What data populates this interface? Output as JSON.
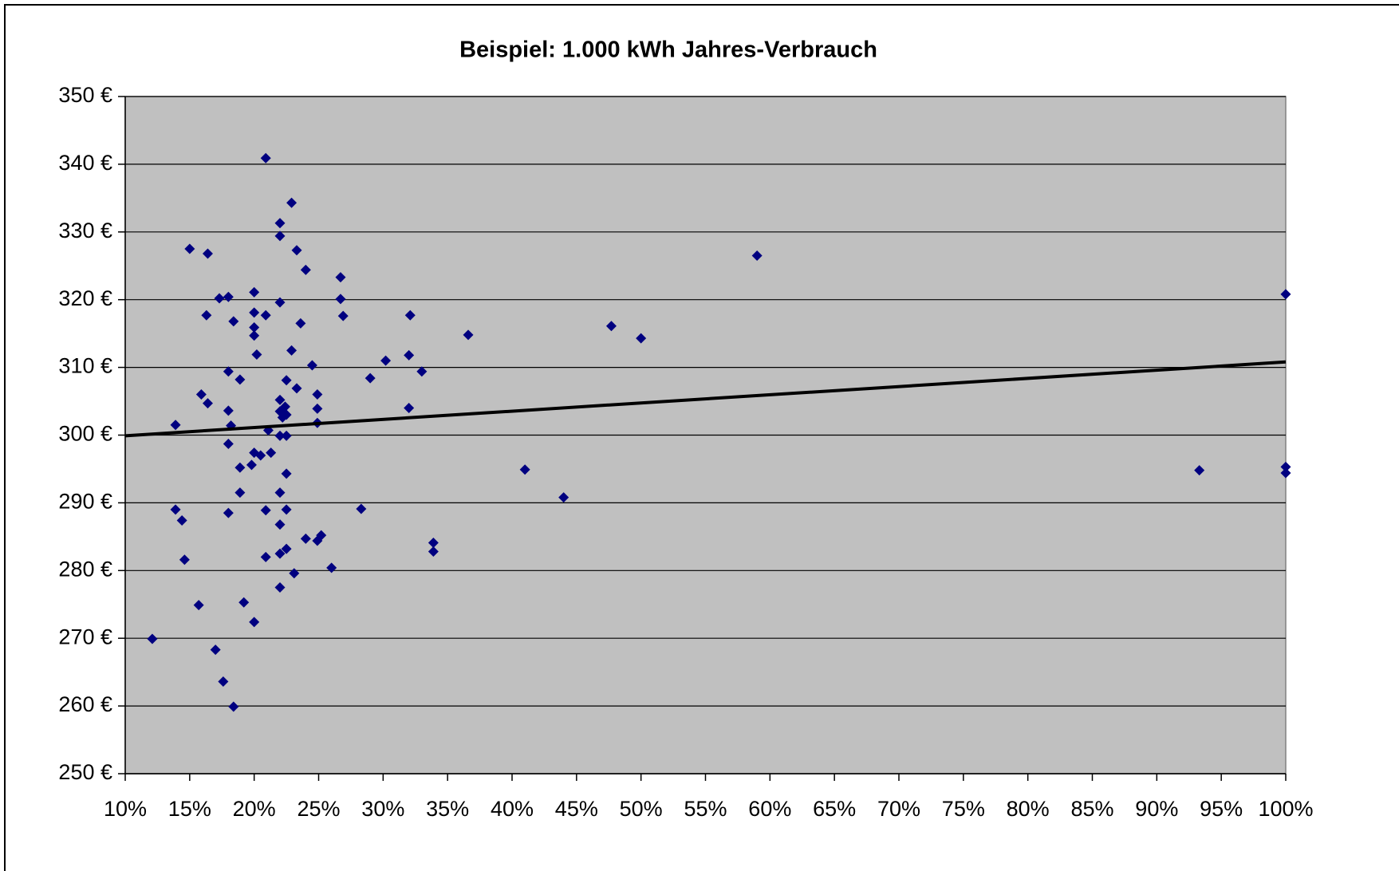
{
  "chart_data": {
    "type": "scatter",
    "title": "Beispiel: 1.000 kWh Jahres-Verbrauch",
    "xlim": [
      10,
      100
    ],
    "ylim": [
      250,
      350
    ],
    "xticks": [
      {
        "value": 10,
        "label": "10%"
      },
      {
        "value": 15,
        "label": "15%"
      },
      {
        "value": 20,
        "label": "20%"
      },
      {
        "value": 25,
        "label": "25%"
      },
      {
        "value": 30,
        "label": "30%"
      },
      {
        "value": 35,
        "label": "35%"
      },
      {
        "value": 40,
        "label": "40%"
      },
      {
        "value": 45,
        "label": "45%"
      },
      {
        "value": 50,
        "label": "50%"
      },
      {
        "value": 55,
        "label": "55%"
      },
      {
        "value": 60,
        "label": "60%"
      },
      {
        "value": 65,
        "label": "65%"
      },
      {
        "value": 70,
        "label": "70%"
      },
      {
        "value": 75,
        "label": "75%"
      },
      {
        "value": 80,
        "label": "80%"
      },
      {
        "value": 85,
        "label": "85%"
      },
      {
        "value": 90,
        "label": "90%"
      },
      {
        "value": 95,
        "label": "95%"
      },
      {
        "value": 100,
        "label": "100%"
      }
    ],
    "yticks": [
      {
        "value": 250,
        "label": "250 €"
      },
      {
        "value": 260,
        "label": "260 €"
      },
      {
        "value": 270,
        "label": "270 €"
      },
      {
        "value": 280,
        "label": "280 €"
      },
      {
        "value": 290,
        "label": "290 €"
      },
      {
        "value": 300,
        "label": "300 €"
      },
      {
        "value": 310,
        "label": "310 €"
      },
      {
        "value": 320,
        "label": "320 €"
      },
      {
        "value": 330,
        "label": "330 €"
      },
      {
        "value": 340,
        "label": "340 €"
      },
      {
        "value": 350,
        "label": "350 €"
      }
    ],
    "grid": true,
    "plot_background": "#c0c0c0",
    "series": [
      {
        "color": "#000080",
        "x": [
          12.1,
          13.9,
          13.9,
          14.4,
          14.6,
          15.0,
          15.7,
          15.9,
          16.3,
          16.4,
          16.4,
          17.0,
          17.3,
          17.6,
          18.0,
          18.0,
          18.0,
          18.0,
          18.0,
          18.2,
          18.4,
          18.4,
          18.9,
          18.9,
          18.9,
          19.2,
          19.8,
          20.0,
          20.0,
          20.0,
          20.0,
          20.0,
          20.0,
          20.2,
          20.5,
          20.9,
          20.9,
          20.9,
          20.9,
          21.1,
          21.3,
          22.0,
          22.0,
          22.0,
          22.0,
          22.0,
          22.0,
          22.0,
          22.0,
          22.0,
          22.0,
          22.2,
          22.4,
          22.5,
          22.5,
          22.5,
          22.5,
          22.5,
          22.5,
          22.9,
          22.9,
          23.1,
          23.3,
          23.3,
          23.6,
          24.0,
          24.0,
          24.5,
          24.9,
          24.9,
          24.9,
          24.9,
          25.2,
          26.0,
          26.7,
          26.7,
          26.9,
          28.3,
          29.0,
          30.2,
          32.0,
          32.0,
          32.1,
          33.0,
          33.9,
          33.9,
          36.6,
          41.0,
          44.0,
          47.7,
          50.0,
          59.0,
          93.3,
          100.0,
          100.0,
          100.0
        ],
        "values": [
          269.9,
          301.5,
          289.0,
          287.4,
          281.6,
          327.5,
          274.9,
          306.0,
          317.7,
          304.7,
          326.8,
          268.3,
          320.2,
          263.6,
          320.4,
          309.4,
          303.6,
          298.7,
          288.5,
          301.4,
          316.8,
          259.9,
          308.2,
          295.2,
          291.5,
          275.3,
          295.6,
          321.1,
          318.1,
          315.9,
          314.7,
          297.4,
          272.4,
          311.9,
          297.0,
          340.9,
          317.7,
          288.9,
          282.0,
          300.7,
          297.4,
          331.3,
          329.4,
          319.6,
          305.2,
          303.5,
          299.9,
          291.5,
          286.8,
          282.5,
          277.5,
          302.6,
          304.2,
          308.1,
          299.9,
          303.0,
          294.3,
          289.0,
          283.2,
          334.3,
          312.5,
          279.6,
          327.3,
          306.9,
          316.5,
          324.4,
          284.7,
          310.3,
          306.0,
          303.9,
          301.8,
          284.4,
          285.2,
          280.4,
          323.3,
          320.1,
          317.6,
          289.1,
          308.4,
          311.0,
          311.8,
          304.0,
          317.7,
          309.4,
          284.1,
          282.8,
          314.8,
          294.9,
          290.8,
          316.1,
          314.3,
          326.5,
          294.8,
          320.8,
          295.3,
          294.4
        ]
      }
    ],
    "trendline": {
      "color": "#000000",
      "x": [
        10,
        100
      ],
      "y": [
        299.9,
        310.8
      ]
    }
  }
}
